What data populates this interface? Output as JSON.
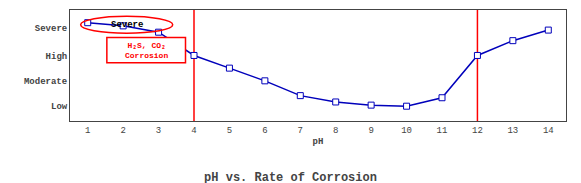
{
  "chart_data": {
    "type": "line",
    "title": "pH vs. Rate of Corrosion",
    "xlabel": "pH",
    "x": [
      1,
      2,
      3,
      4,
      5,
      6,
      7,
      8,
      9,
      10,
      11,
      12,
      13,
      14
    ],
    "values": [
      0.93,
      0.9,
      0.84,
      0.62,
      0.5,
      0.38,
      0.24,
      0.18,
      0.15,
      0.14,
      0.22,
      0.62,
      0.76,
      0.86
    ],
    "color": "#0000bb",
    "marker": "square",
    "xlim": [
      0.5,
      14.5
    ],
    "xticks": [
      1,
      2,
      3,
      4,
      5,
      6,
      7,
      8,
      9,
      10,
      11,
      12,
      13,
      14
    ],
    "ylim": [
      0,
      1.05
    ],
    "yticks": [
      {
        "value": 0.88,
        "label": "Severe"
      },
      {
        "value": 0.62,
        "label": "High"
      },
      {
        "value": 0.38,
        "label": "Moderate"
      },
      {
        "value": 0.14,
        "label": "Low"
      }
    ],
    "grid": false,
    "vlines": {
      "x": [
        4,
        12
      ],
      "color": "red"
    },
    "annotations": [
      {
        "text": "Severe",
        "shape": "ellipse",
        "color": "red"
      },
      {
        "text": "H₂S, CO₂\nCorrosion",
        "shape": "rectangle",
        "color": "red"
      }
    ]
  }
}
